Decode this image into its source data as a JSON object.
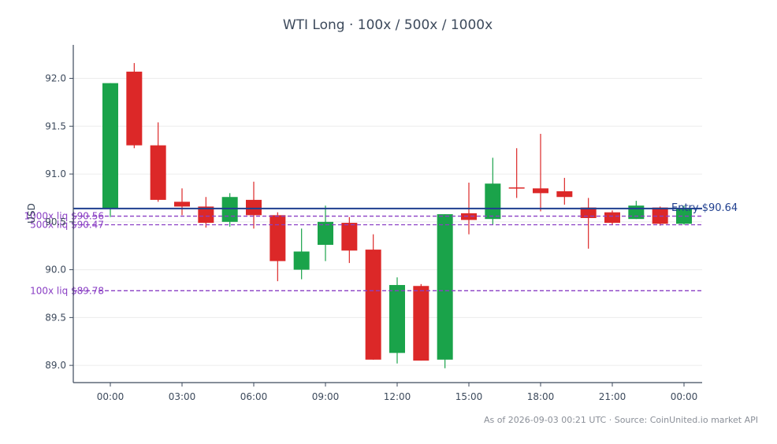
{
  "chart_data": {
    "type": "candlestick",
    "title": "WTI Long · 100x / 500x / 1000x",
    "ylabel": "USD",
    "xlabel": "",
    "ylim": [
      88.82,
      92.35
    ],
    "x_ticks": [
      "00:00",
      "03:00",
      "06:00",
      "09:00",
      "12:00",
      "15:00",
      "18:00",
      "21:00",
      "00:00"
    ],
    "y_ticks": [
      89.0,
      89.5,
      90.0,
      90.5,
      91.0,
      91.5,
      92.0
    ],
    "y_tick_labels": [
      "89.0",
      "89.5",
      "90.0",
      "90.5",
      "91.0",
      "91.5",
      "92.0"
    ],
    "grid": true,
    "colors": {
      "up": "#1aa34a",
      "down": "#dc2828",
      "entry": "#1f3f8f",
      "liq": "#8a3fc4"
    },
    "candles": [
      {
        "time": "00:00",
        "open": 90.64,
        "high": 91.95,
        "low": 90.55,
        "close": 91.95
      },
      {
        "time": "01:00",
        "open": 92.07,
        "high": 92.16,
        "low": 91.27,
        "close": 91.3
      },
      {
        "time": "02:00",
        "open": 91.3,
        "high": 91.54,
        "low": 90.71,
        "close": 90.73
      },
      {
        "time": "03:00",
        "open": 90.71,
        "high": 90.85,
        "low": 90.57,
        "close": 90.66
      },
      {
        "time": "04:00",
        "open": 90.66,
        "high": 90.76,
        "low": 90.44,
        "close": 90.49
      },
      {
        "time": "05:00",
        "open": 90.5,
        "high": 90.8,
        "low": 90.45,
        "close": 90.76
      },
      {
        "time": "06:00",
        "open": 90.73,
        "high": 90.92,
        "low": 90.43,
        "close": 90.57
      },
      {
        "time": "07:00",
        "open": 90.57,
        "high": 90.6,
        "low": 89.88,
        "close": 90.09
      },
      {
        "time": "08:00",
        "open": 90.0,
        "high": 90.43,
        "low": 89.9,
        "close": 90.19
      },
      {
        "time": "09:00",
        "open": 90.26,
        "high": 90.67,
        "low": 90.09,
        "close": 90.5
      },
      {
        "time": "10:00",
        "open": 90.49,
        "high": 90.55,
        "low": 90.07,
        "close": 90.2
      },
      {
        "time": "11:00",
        "open": 90.21,
        "high": 90.37,
        "low": 89.06,
        "close": 89.06
      },
      {
        "time": "12:00",
        "open": 89.13,
        "high": 89.92,
        "low": 89.02,
        "close": 89.84
      },
      {
        "time": "13:00",
        "open": 89.83,
        "high": 89.85,
        "low": 89.05,
        "close": 89.05
      },
      {
        "time": "14:00",
        "open": 89.06,
        "high": 90.58,
        "low": 88.97,
        "close": 90.58
      },
      {
        "time": "15:00",
        "open": 90.59,
        "high": 90.91,
        "low": 90.37,
        "close": 90.52
      },
      {
        "time": "16:00",
        "open": 90.53,
        "high": 91.17,
        "low": 90.47,
        "close": 90.9
      },
      {
        "time": "17:00",
        "open": 90.86,
        "high": 91.27,
        "low": 90.75,
        "close": 90.85
      },
      {
        "time": "18:00",
        "open": 90.85,
        "high": 91.42,
        "low": 90.61,
        "close": 90.8
      },
      {
        "time": "19:00",
        "open": 90.82,
        "high": 90.96,
        "low": 90.68,
        "close": 90.76
      },
      {
        "time": "20:00",
        "open": 90.65,
        "high": 90.75,
        "low": 90.22,
        "close": 90.54
      },
      {
        "time": "21:00",
        "open": 90.6,
        "high": 90.62,
        "low": 90.47,
        "close": 90.49
      },
      {
        "time": "22:00",
        "open": 90.53,
        "high": 90.72,
        "low": 90.53,
        "close": 90.67
      },
      {
        "time": "23:00",
        "open": 90.65,
        "high": 90.66,
        "low": 90.46,
        "close": 90.48
      },
      {
        "time": "00:00",
        "open": 90.48,
        "high": 90.67,
        "low": 90.47,
        "close": 90.64
      }
    ],
    "lines": {
      "entry": {
        "label": "Entry $90.64",
        "value": 90.64
      },
      "liquidations": [
        {
          "label": "1000x liq $90.56",
          "value": 90.56
        },
        {
          "label": "500x liq $90.47",
          "value": 90.47
        },
        {
          "label": "100x liq $89.78",
          "value": 89.78
        }
      ]
    }
  },
  "footer": "As of 2026-09-03 00:21 UTC · Source: CoinUnited.io market API"
}
